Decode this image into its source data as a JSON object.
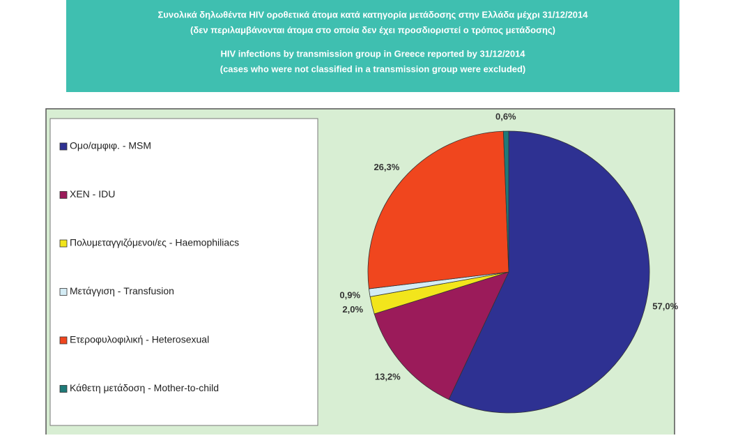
{
  "chart_data": {
    "type": "pie",
    "title": "Συνολικά δηλωθέντα HIV οροθετικά άτομα κατά κατηγορία μετάδοσης στην Ελλάδα μέχρι 31/12/2014",
    "subtitle": "(δεν περιλαμβάνονται άτομα στο οποία δεν έχει προσδιοριστεί ο τρόπος μετάδοσης)",
    "title_en": "HIV infections by transmission group in Greece reported by 31/12/2014",
    "subtitle_en": "(cases who were not classified in a transmission group were excluded)",
    "categories": [
      "Ομο/αμφιφ. - MSM",
      "ΧΕΝ - IDU",
      "Πολυμεταγγιζόμενοι/ες - Haemophiliacs",
      "Μετάγγιση - Transfusion",
      "Ετεροφυλοφιλική - Heterosexual",
      "Κάθετη μετάδοση - Mother-to-child"
    ],
    "values": [
      57.0,
      13.2,
      2.0,
      0.9,
      26.3,
      0.6
    ],
    "value_labels": [
      "57,0%",
      "13,2%",
      "2,0%",
      "0,9%",
      "26,3%",
      "0,6%"
    ],
    "colors": [
      "#2e3192",
      "#9b1b5a",
      "#f2e51c",
      "#d4ecf5",
      "#f0461e",
      "#1f7a78"
    ]
  }
}
